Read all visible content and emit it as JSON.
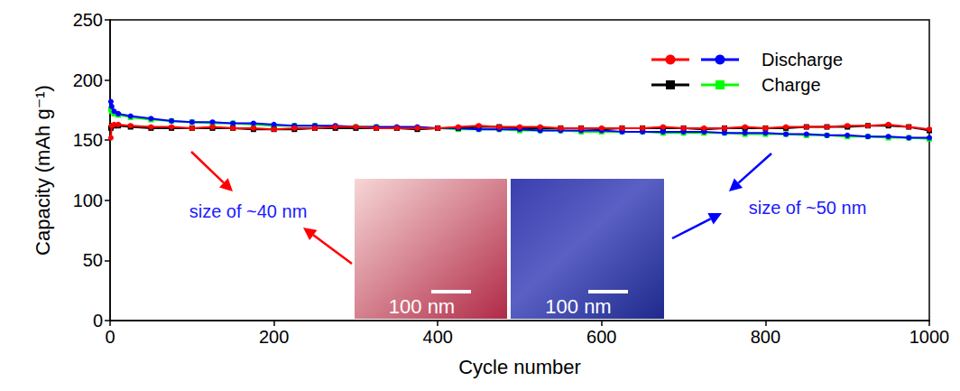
{
  "chart_data": {
    "type": "line",
    "x_label": "Cycle number",
    "y_label": "Capacity (mAh g⁻¹)",
    "xlim": [
      0,
      1000
    ],
    "xticks": [
      0,
      200,
      400,
      600,
      800,
      1000
    ],
    "ylim": [
      0,
      250
    ],
    "yticks": [
      0,
      50,
      100,
      150,
      200,
      250
    ],
    "grid": false,
    "legend": "upper right",
    "x": [
      1,
      2,
      5,
      10,
      25,
      50,
      75,
      100,
      125,
      150,
      175,
      200,
      225,
      250,
      275,
      300,
      325,
      350,
      375,
      400,
      425,
      450,
      475,
      500,
      525,
      550,
      575,
      600,
      625,
      650,
      675,
      700,
      725,
      750,
      775,
      800,
      825,
      850,
      875,
      900,
      925,
      950,
      975,
      1000
    ],
    "series": [
      {
        "name": "Discharge",
        "color": "#ff0000",
        "marker": "circle",
        "values": [
          152,
          162,
          163,
          163,
          162,
          161,
          161,
          160,
          161,
          160,
          160,
          159,
          160,
          160,
          161,
          161,
          160,
          160,
          160,
          160,
          161,
          162,
          161,
          161,
          161,
          160,
          160,
          160,
          160,
          160,
          161,
          160,
          160,
          160,
          161,
          160,
          161,
          161,
          161,
          162,
          162,
          163,
          161,
          159
        ]
      },
      {
        "name": "Discharge",
        "color": "#0000ff",
        "marker": "circle",
        "values": [
          182,
          178,
          174,
          172,
          170,
          168,
          166,
          165,
          165,
          164,
          164,
          163,
          162,
          162,
          162,
          161,
          161,
          161,
          161,
          160,
          160,
          159,
          159,
          159,
          158,
          158,
          158,
          158,
          157,
          157,
          157,
          157,
          157,
          156,
          156,
          156,
          155,
          155,
          154,
          154,
          153,
          153,
          152,
          152
        ]
      },
      {
        "name": "Charge",
        "color": "#000000",
        "marker": "square",
        "values": [
          160,
          162,
          162,
          162,
          161,
          160,
          160,
          160,
          160,
          160,
          159,
          159,
          159,
          160,
          160,
          160,
          160,
          160,
          159,
          160,
          160,
          161,
          161,
          160,
          160,
          160,
          160,
          159,
          160,
          160,
          160,
          160,
          159,
          160,
          160,
          160,
          160,
          161,
          161,
          161,
          162,
          162,
          161,
          158
        ]
      },
      {
        "name": "Charge",
        "color": "#00ff00",
        "marker": "square",
        "values": [
          176,
          174,
          172,
          171,
          169,
          167,
          166,
          165,
          164,
          164,
          163,
          162,
          162,
          162,
          161,
          161,
          161,
          160,
          160,
          160,
          159,
          159,
          159,
          158,
          158,
          158,
          157,
          157,
          157,
          157,
          156,
          156,
          156,
          156,
          155,
          155,
          155,
          154,
          154,
          153,
          153,
          152,
          152,
          151
        ]
      }
    ],
    "annotations": [
      "size of ~40 nm",
      "size of ~50 nm"
    ],
    "inset_labels": [
      "100 nm",
      "100 nm"
    ]
  }
}
